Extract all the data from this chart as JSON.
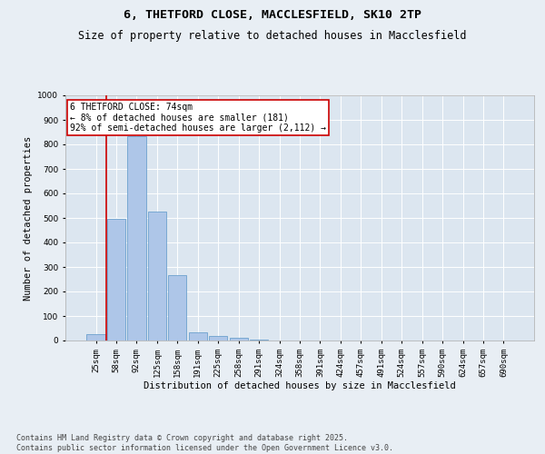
{
  "title_line1": "6, THETFORD CLOSE, MACCLESFIELD, SK10 2TP",
  "title_line2": "Size of property relative to detached houses in Macclesfield",
  "xlabel": "Distribution of detached houses by size in Macclesfield",
  "ylabel": "Number of detached properties",
  "categories": [
    "25sqm",
    "58sqm",
    "92sqm",
    "125sqm",
    "158sqm",
    "191sqm",
    "225sqm",
    "258sqm",
    "291sqm",
    "324sqm",
    "358sqm",
    "391sqm",
    "424sqm",
    "457sqm",
    "491sqm",
    "524sqm",
    "557sqm",
    "590sqm",
    "624sqm",
    "657sqm",
    "690sqm"
  ],
  "values": [
    25,
    495,
    835,
    525,
    265,
    35,
    20,
    10,
    5,
    0,
    0,
    0,
    0,
    0,
    0,
    0,
    0,
    0,
    0,
    0,
    0
  ],
  "bar_color": "#aec6e8",
  "bar_edge_color": "#5a96c8",
  "background_color": "#e8eef4",
  "plot_bg_color": "#dce6f0",
  "grid_color": "#ffffff",
  "vline_color": "#cc0000",
  "vline_position": 1.0,
  "annotation_text": "6 THETFORD CLOSE: 74sqm\n← 8% of detached houses are smaller (181)\n92% of semi-detached houses are larger (2,112) →",
  "annotation_box_color": "#ffffff",
  "annotation_box_edge": "#cc0000",
  "ylim": [
    0,
    1000
  ],
  "yticks": [
    0,
    100,
    200,
    300,
    400,
    500,
    600,
    700,
    800,
    900,
    1000
  ],
  "footer_text": "Contains HM Land Registry data © Crown copyright and database right 2025.\nContains public sector information licensed under the Open Government Licence v3.0.",
  "title_fontsize": 9.5,
  "subtitle_fontsize": 8.5,
  "axis_label_fontsize": 7.5,
  "tick_fontsize": 6.5,
  "annotation_fontsize": 7,
  "footer_fontsize": 6
}
